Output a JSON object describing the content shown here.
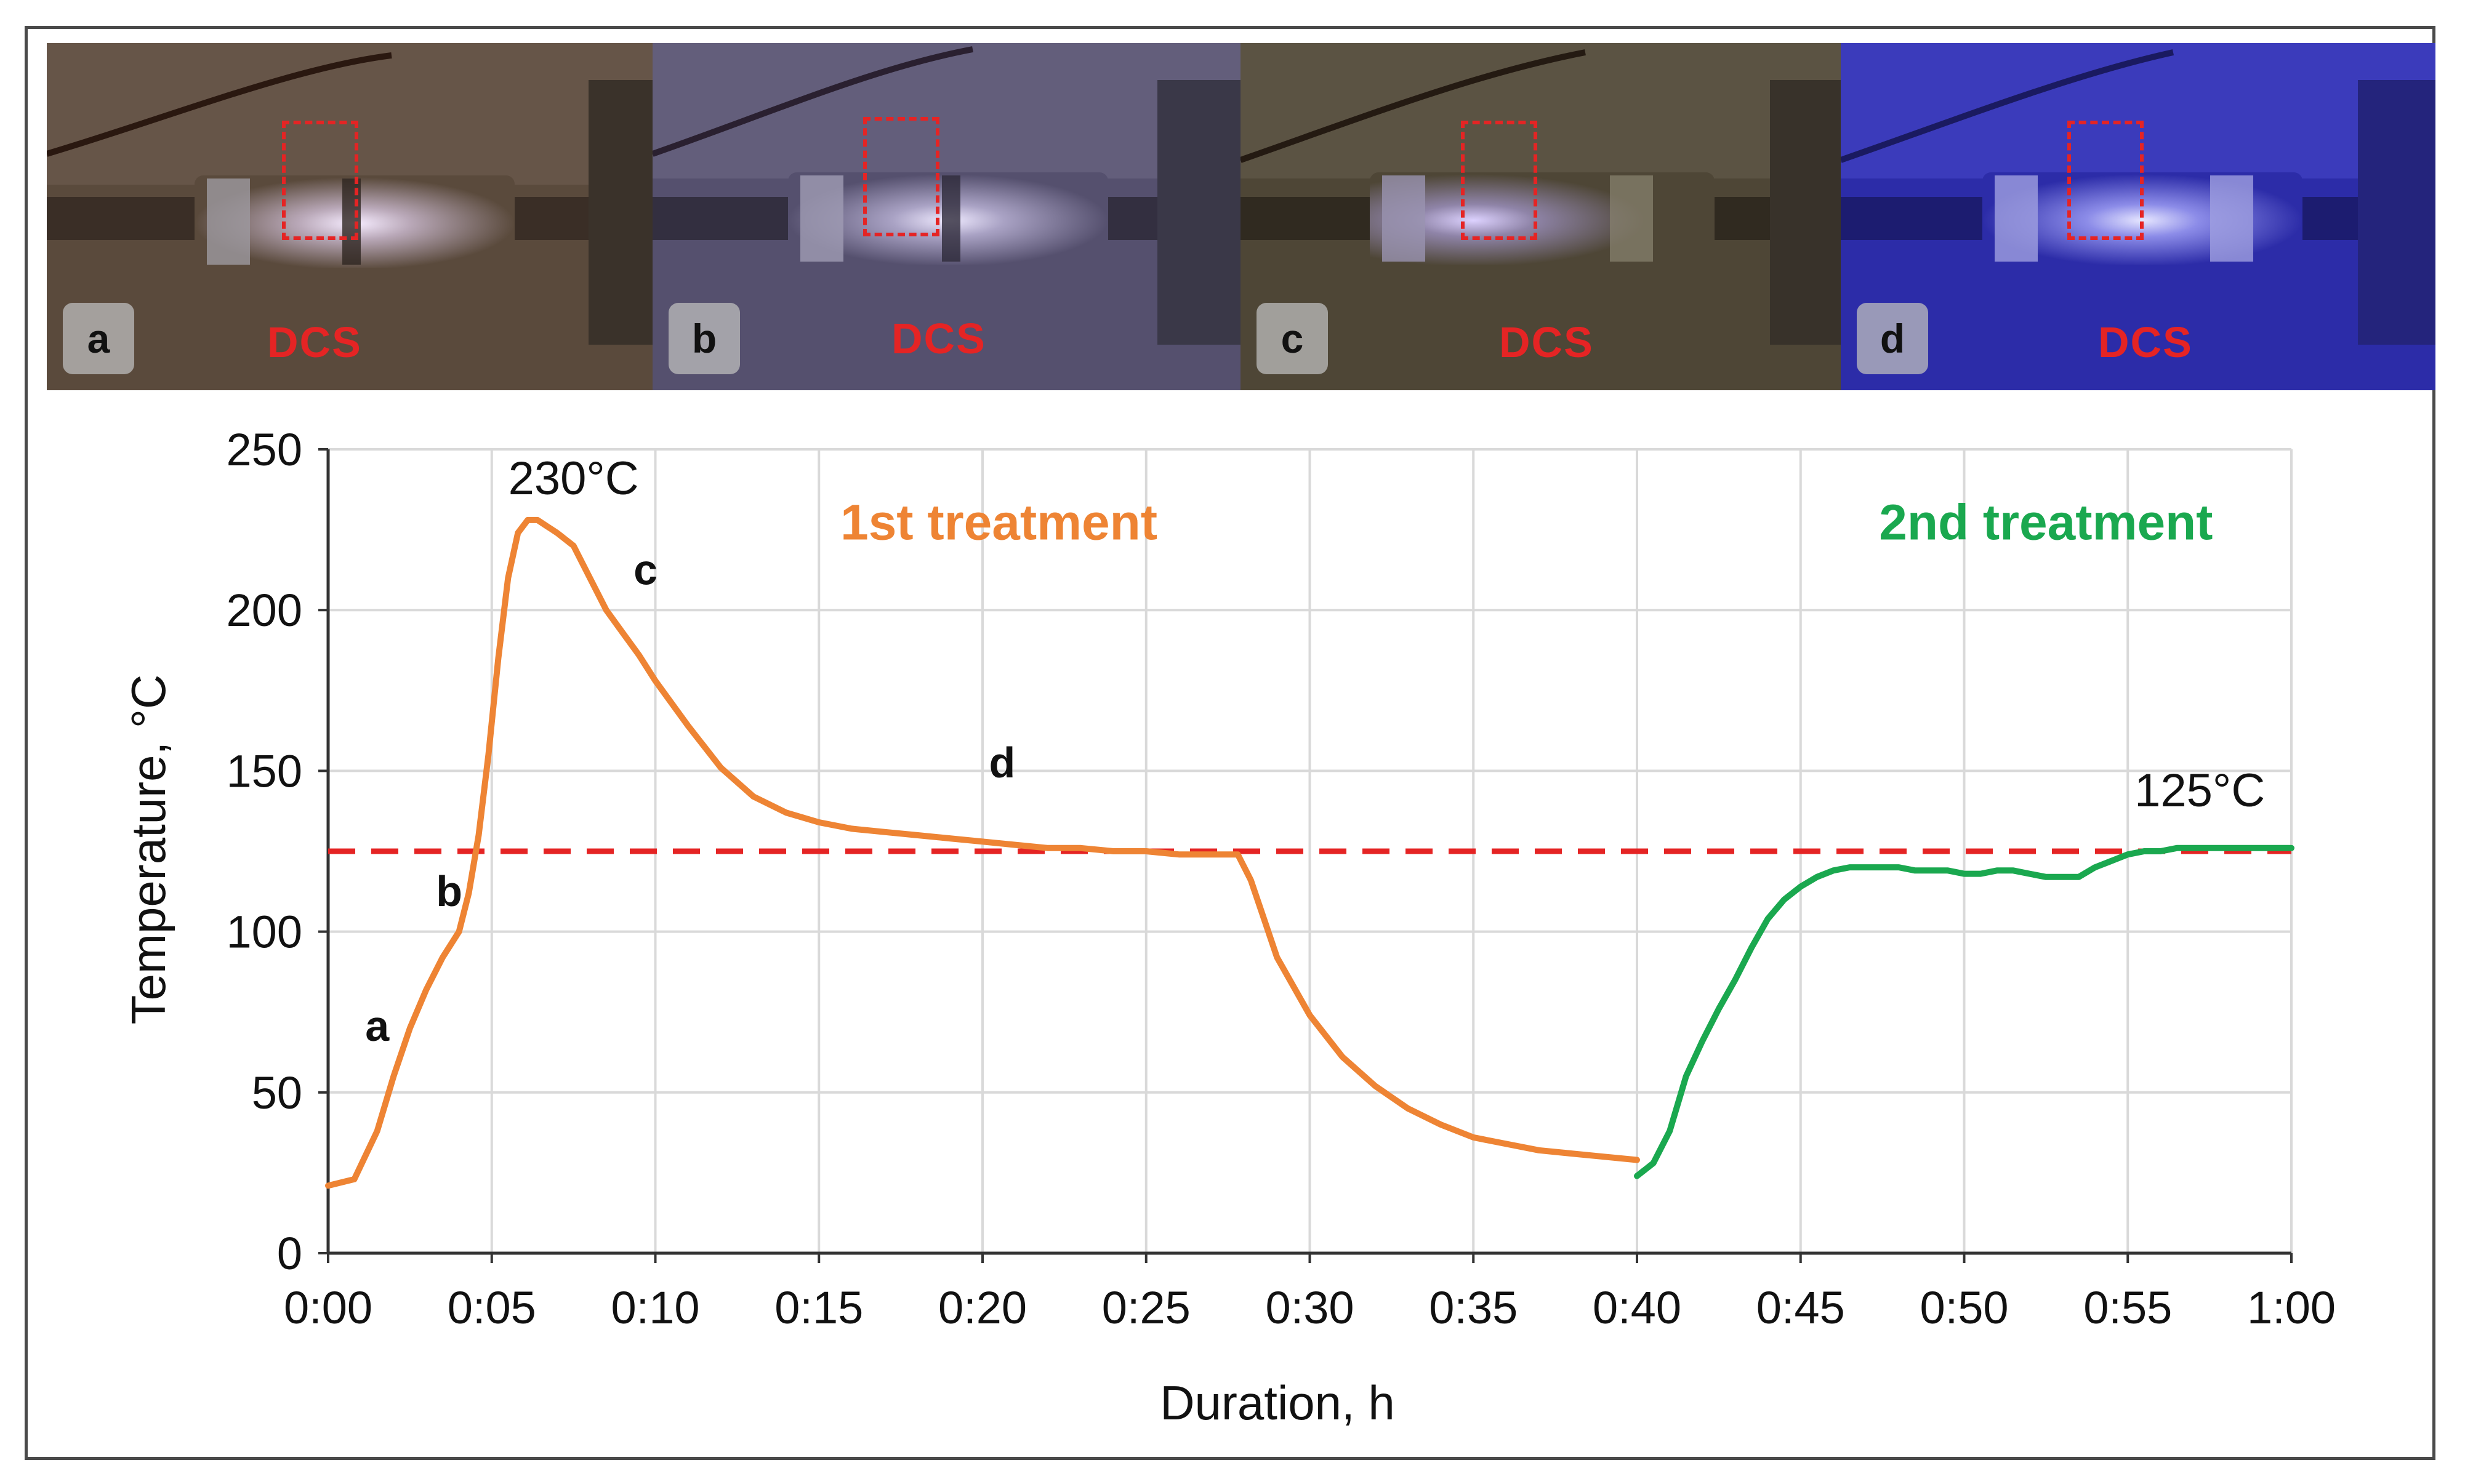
{
  "photos": [
    {
      "label": "a",
      "region_label": "DCS",
      "tint": "#5a4a3c",
      "glow": "#f4e6ff"
    },
    {
      "label": "b",
      "region_label": "DCS",
      "tint": "#55506e",
      "glow": "#eae6ff"
    },
    {
      "label": "c",
      "region_label": "DCS",
      "tint": "#4e4636",
      "glow": "#d8ccff"
    },
    {
      "label": "d",
      "region_label": "DCS",
      "tint": "#2c2ca8",
      "glow": "#d0d0ff"
    }
  ],
  "chart_data": {
    "type": "line",
    "xlabel": "Duration, h",
    "ylabel": "Temperature, °C",
    "x_unit": "minutes",
    "xlim": [
      0,
      60
    ],
    "ylim": [
      0,
      250
    ],
    "x_ticks": [
      "0:00",
      "0:05",
      "0:10",
      "0:15",
      "0:20",
      "0:25",
      "0:30",
      "0:35",
      "0:40",
      "0:45",
      "0:50",
      "0:55",
      "1:00"
    ],
    "y_ticks": [
      "0",
      "50",
      "100",
      "150",
      "200",
      "250"
    ],
    "grid": "vertical",
    "series": [
      {
        "name": "1st treatment",
        "color": "#ee8434",
        "x": [
          0,
          0.8,
          1.5,
          2.0,
          2.5,
          3.0,
          3.5,
          4.0,
          4.3,
          4.6,
          4.9,
          5.2,
          5.5,
          5.8,
          6.1,
          6.4,
          6.7,
          7.0,
          7.5,
          8.0,
          8.5,
          9.0,
          9.5,
          10,
          11,
          12,
          13,
          14,
          15,
          16,
          17,
          18,
          19,
          20,
          21,
          22,
          23,
          24,
          25,
          26,
          27,
          27.8,
          28.2,
          28.6,
          29,
          30,
          31,
          32,
          33,
          34,
          35,
          36,
          37,
          38,
          39,
          40
        ],
        "y": [
          21,
          23,
          38,
          55,
          70,
          82,
          92,
          100,
          112,
          130,
          155,
          185,
          210,
          224,
          228,
          228,
          226,
          224,
          220,
          210,
          200,
          193,
          186,
          178,
          164,
          151,
          142,
          137,
          134,
          132,
          131,
          130,
          129,
          128,
          127,
          126,
          126,
          125,
          125,
          124,
          124,
          124,
          116,
          104,
          92,
          74,
          61,
          52,
          45,
          40,
          36,
          34,
          32,
          31,
          30,
          29
        ]
      },
      {
        "name": "2nd treatment",
        "color": "#1aa84f",
        "x": [
          40,
          40.5,
          41,
          41.5,
          42,
          42.5,
          43,
          43.5,
          44,
          44.5,
          45,
          45.5,
          46,
          46.5,
          47,
          47.5,
          48,
          48.5,
          49,
          49.5,
          50,
          50.5,
          51,
          51.5,
          52,
          52.5,
          53,
          53.5,
          54,
          54.5,
          55,
          55.5,
          56,
          56.5,
          57,
          57.5,
          58,
          58.5,
          59,
          59.5,
          60
        ],
        "y": [
          24,
          28,
          38,
          55,
          66,
          76,
          85,
          95,
          104,
          110,
          114,
          117,
          119,
          120,
          120,
          120,
          120,
          119,
          119,
          119,
          118,
          118,
          119,
          119,
          118,
          117,
          117,
          117,
          120,
          122,
          124,
          125,
          125,
          126,
          126,
          126,
          126,
          126,
          126,
          126,
          126
        ]
      }
    ],
    "reference_line": {
      "y": 125,
      "color": "#e52424",
      "style": "dashed"
    },
    "annotations": [
      {
        "text": "230°C",
        "x": 7.5,
        "y": 236,
        "color": "#111111",
        "weight": "normal"
      },
      {
        "text": "1st treatment",
        "x": 20.5,
        "y": 222,
        "color": "#ee8434",
        "weight": "bold"
      },
      {
        "text": "2nd treatment",
        "x": 52.5,
        "y": 222,
        "color": "#1aa84f",
        "weight": "bold"
      },
      {
        "text": "125°C",
        "x": 57.2,
        "y": 139,
        "color": "#111111",
        "weight": "normal"
      },
      {
        "text": "a",
        "x": 1.5,
        "y": 66,
        "color": "#111111",
        "weight": "bold"
      },
      {
        "text": "b",
        "x": 3.7,
        "y": 108,
        "color": "#111111",
        "weight": "bold"
      },
      {
        "text": "c",
        "x": 9.7,
        "y": 208,
        "color": "#111111",
        "weight": "bold"
      },
      {
        "text": "d",
        "x": 20.6,
        "y": 148,
        "color": "#111111",
        "weight": "bold"
      }
    ]
  }
}
